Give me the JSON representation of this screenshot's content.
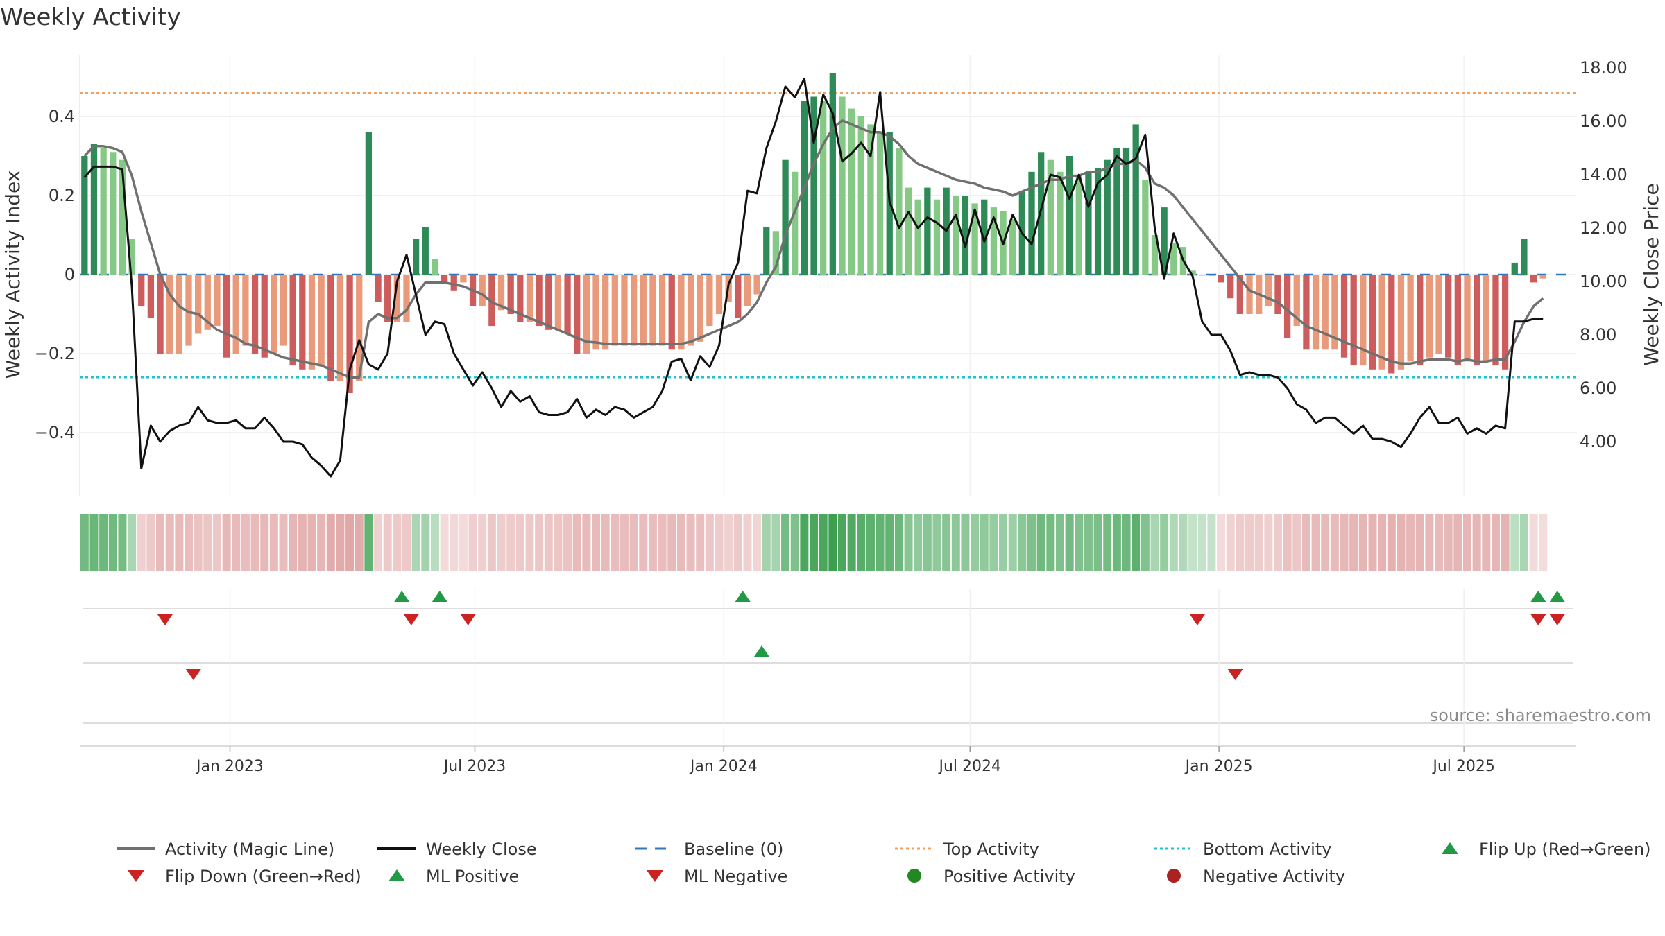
{
  "chart_data": {
    "type": "bar",
    "title": "Weekly Activity",
    "ylabel": "Weekly Activity Index",
    "y2label": "Weekly Close Price",
    "ylim": [
      -0.56,
      0.56
    ],
    "y2lim": [
      2.0,
      18.4
    ],
    "yticks": [
      0.4,
      0.2,
      0,
      -0.2,
      -0.4
    ],
    "ytick_labels": [
      "0.4",
      "0.2",
      "0",
      "−0.2",
      "−0.4"
    ],
    "y2ticks": [
      18,
      16,
      14,
      12,
      10,
      8,
      6,
      4
    ],
    "y2tick_labels": [
      "18.00",
      "16.00",
      "14.00",
      "12.00",
      "10.00",
      "8.00",
      "6.00",
      "4.00"
    ],
    "xlim": [
      "2022-09-12",
      "2025-09-22"
    ],
    "xticks": [
      "2023-01-01",
      "2023-07-01",
      "2024-01-01",
      "2024-07-01",
      "2025-01-01",
      "2025-07-01"
    ],
    "xtick_labels": [
      "Jan 2023",
      "Jul 2023",
      "Jan 2024",
      "Jul 2024",
      "Jan 2025",
      "Jul 2025"
    ],
    "start_week": "2022-09-12",
    "top_activity": 0.46,
    "bottom_activity": -0.26,
    "grid": true,
    "legend_position": "bottom",
    "series": [
      {
        "name": "Weekly Activity Index",
        "values": [
          0.3,
          0.33,
          0.32,
          0.31,
          0.29,
          0.09,
          -0.08,
          -0.11,
          -0.2,
          -0.2,
          -0.2,
          -0.18,
          -0.15,
          -0.14,
          -0.13,
          -0.21,
          -0.2,
          -0.18,
          -0.2,
          -0.21,
          -0.2,
          -0.18,
          -0.23,
          -0.24,
          -0.24,
          -0.23,
          -0.27,
          -0.27,
          -0.3,
          -0.27,
          0.36,
          -0.07,
          -0.12,
          -0.12,
          -0.12,
          0.09,
          0.12,
          0.04,
          -0.02,
          -0.04,
          -0.02,
          -0.08,
          -0.08,
          -0.13,
          -0.09,
          -0.1,
          -0.12,
          -0.12,
          -0.13,
          -0.14,
          -0.14,
          -0.15,
          -0.2,
          -0.2,
          -0.19,
          -0.19,
          -0.18,
          -0.18,
          -0.18,
          -0.18,
          -0.18,
          -0.18,
          -0.19,
          -0.19,
          -0.18,
          -0.17,
          -0.13,
          -0.1,
          -0.07,
          -0.11,
          -0.08,
          -0.05,
          0.12,
          0.11,
          0.29,
          0.26,
          0.44,
          0.45,
          0.44,
          0.51,
          0.45,
          0.42,
          0.4,
          0.38,
          0.36,
          0.36,
          0.32,
          0.22,
          0.19,
          0.22,
          0.19,
          0.22,
          0.2,
          0.2,
          0.18,
          0.19,
          0.17,
          0.16,
          0.14,
          0.21,
          0.26,
          0.31,
          0.29,
          0.26,
          0.3,
          0.25,
          0.26,
          0.27,
          0.29,
          0.32,
          0.32,
          0.38,
          0.24,
          0.1,
          0.17,
          0.08,
          0.07,
          0.01,
          0,
          0,
          -0.02,
          -0.06,
          -0.1,
          -0.1,
          -0.1,
          -0.08,
          -0.1,
          -0.16,
          -0.13,
          -0.19,
          -0.19,
          -0.19,
          -0.19,
          -0.21,
          -0.23,
          -0.23,
          -0.24,
          -0.24,
          -0.25,
          -0.24,
          -0.22,
          -0.23,
          -0.21,
          -0.2,
          -0.21,
          -0.23,
          -0.22,
          -0.23,
          -0.22,
          -0.23,
          -0.24,
          0.03,
          0.09,
          -0.02,
          -0.01
        ]
      },
      {
        "name": "Weekly Close",
        "values": [
          13.9,
          14.3,
          14.3,
          14.3,
          14.2,
          9.8,
          3.0,
          4.6,
          4.0,
          4.4,
          4.6,
          4.7,
          5.3,
          4.8,
          4.7,
          4.7,
          4.8,
          4.5,
          4.5,
          4.9,
          4.5,
          4.0,
          4.0,
          3.9,
          3.4,
          3.1,
          2.7,
          3.3,
          6.7,
          7.8,
          6.9,
          6.7,
          7.3,
          10.0,
          11.0,
          9.5,
          8.0,
          8.5,
          8.4,
          7.3,
          6.7,
          6.1,
          6.6,
          6.0,
          5.3,
          5.9,
          5.5,
          5.7,
          5.1,
          5.0,
          5.0,
          5.1,
          5.6,
          4.9,
          5.2,
          5.0,
          5.3,
          5.2,
          4.9,
          5.1,
          5.3,
          5.9,
          7.0,
          7.1,
          6.3,
          7.2,
          6.8,
          7.6,
          9.9,
          10.7,
          13.4,
          13.3,
          15.0,
          16.0,
          17.3,
          16.9,
          17.6,
          15.2,
          17.0,
          16.3,
          14.5,
          14.8,
          15.2,
          14.7,
          17.1,
          13.0,
          12.0,
          12.6,
          12.0,
          12.4,
          12.2,
          11.9,
          12.5,
          11.3,
          12.7,
          11.5,
          12.4,
          11.4,
          12.5,
          11.8,
          11.4,
          12.7,
          14.0,
          13.9,
          13.1,
          14.0,
          12.8,
          13.7,
          14.0,
          14.7,
          14.4,
          14.6,
          15.5,
          12.0,
          10.1,
          11.8,
          10.8,
          10.2,
          8.5,
          8.0,
          8.0,
          7.4,
          6.5,
          6.6,
          6.5,
          6.5,
          6.4,
          6.0,
          5.4,
          5.2,
          4.7,
          4.9,
          4.9,
          4.6,
          4.3,
          4.6,
          4.1,
          4.1,
          4.0,
          3.8,
          4.3,
          4.9,
          5.3,
          4.7,
          4.7,
          4.9,
          4.3,
          4.5,
          4.3,
          4.6,
          4.5,
          8.5,
          8.5,
          8.6,
          8.6
        ]
      },
      {
        "name": "Activity (Magic Line)",
        "values": [
          0.3,
          0.325,
          0.325,
          0.32,
          0.31,
          0.25,
          0.16,
          0.08,
          0.0,
          -0.05,
          -0.08,
          -0.095,
          -0.1,
          -0.12,
          -0.14,
          -0.15,
          -0.16,
          -0.175,
          -0.18,
          -0.19,
          -0.2,
          -0.21,
          -0.215,
          -0.22,
          -0.225,
          -0.23,
          -0.24,
          -0.25,
          -0.26,
          -0.26,
          -0.12,
          -0.1,
          -0.11,
          -0.11,
          -0.09,
          -0.05,
          -0.02,
          -0.02,
          -0.02,
          -0.025,
          -0.03,
          -0.04,
          -0.05,
          -0.07,
          -0.08,
          -0.09,
          -0.1,
          -0.11,
          -0.12,
          -0.13,
          -0.14,
          -0.15,
          -0.16,
          -0.17,
          -0.172,
          -0.175,
          -0.175,
          -0.175,
          -0.175,
          -0.175,
          -0.175,
          -0.175,
          -0.175,
          -0.175,
          -0.17,
          -0.16,
          -0.15,
          -0.14,
          -0.13,
          -0.12,
          -0.1,
          -0.07,
          -0.02,
          0.02,
          0.1,
          0.16,
          0.22,
          0.28,
          0.33,
          0.37,
          0.39,
          0.38,
          0.37,
          0.36,
          0.36,
          0.35,
          0.33,
          0.3,
          0.28,
          0.27,
          0.26,
          0.25,
          0.24,
          0.235,
          0.23,
          0.22,
          0.215,
          0.21,
          0.2,
          0.21,
          0.22,
          0.23,
          0.24,
          0.24,
          0.25,
          0.25,
          0.26,
          0.26,
          0.27,
          0.28,
          0.28,
          0.29,
          0.27,
          0.23,
          0.22,
          0.2,
          0.17,
          0.14,
          0.11,
          0.08,
          0.05,
          0.02,
          -0.01,
          -0.04,
          -0.05,
          -0.06,
          -0.07,
          -0.09,
          -0.11,
          -0.13,
          -0.14,
          -0.15,
          -0.16,
          -0.17,
          -0.18,
          -0.19,
          -0.2,
          -0.21,
          -0.22,
          -0.225,
          -0.225,
          -0.22,
          -0.215,
          -0.215,
          -0.215,
          -0.22,
          -0.215,
          -0.22,
          -0.22,
          -0.215,
          -0.215,
          -0.17,
          -0.12,
          -0.08,
          -0.06
        ]
      }
    ],
    "flip_up_row1": [
      "2023-05-08",
      "2023-06-05",
      "2024-01-15",
      "2025-08-25",
      "2025-09-08"
    ],
    "flip_down_row1": [
      "2022-11-14",
      "2023-05-15",
      "2023-06-26",
      "2024-12-16",
      "2025-08-25",
      "2025-09-08"
    ],
    "ml_positive_row2": [
      "2024-01-29"
    ],
    "ml_negative_row2": [
      "2022-12-05",
      "2025-01-13"
    ],
    "source": "source: sharemaestro.com",
    "legend": [
      {
        "label": "Activity (Magic Line)",
        "marker": "line",
        "color": "#707070"
      },
      {
        "label": "Weekly Close",
        "marker": "line",
        "color": "#111111"
      },
      {
        "label": "Baseline (0)",
        "marker": "dash",
        "color": "#3377bb"
      },
      {
        "label": "Top Activity",
        "marker": "dot",
        "color": "#f0a060"
      },
      {
        "label": "Bottom Activity",
        "marker": "dot",
        "color": "#22c0d0"
      },
      {
        "label": "Flip Up (Red→Green)",
        "marker": "triangle-up",
        "color": "#229944"
      },
      {
        "label": "Flip Down (Green→Red)",
        "marker": "triangle-down",
        "color": "#cc2222"
      },
      {
        "label": "ML Positive",
        "marker": "triangle-up",
        "color": "#229944"
      },
      {
        "label": "ML Negative",
        "marker": "triangle-down",
        "color": "#cc2222"
      },
      {
        "label": "Positive Activity",
        "marker": "circle",
        "color": "#228822"
      },
      {
        "label": "Negative Activity",
        "marker": "circle",
        "color": "#aa2222"
      }
    ]
  }
}
